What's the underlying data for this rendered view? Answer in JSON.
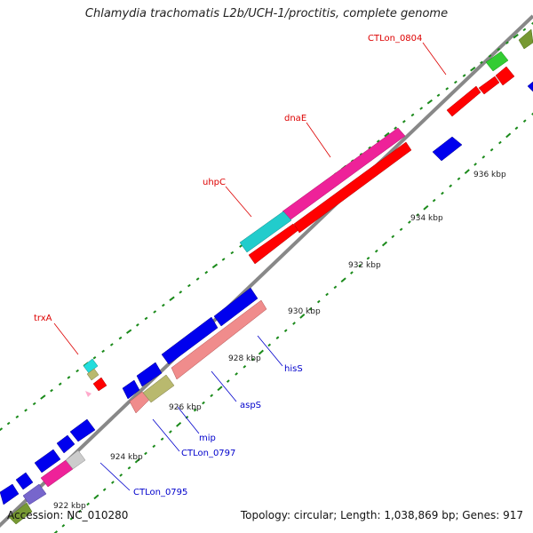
{
  "title": "Chlamydia trachomatis L2b/UCH-1/proctitis, complete genome",
  "footer": {
    "accession": "Accession: NC_010280",
    "summary": "Topology: circular; Length: 1,038,869 bp; Genes: 917"
  },
  "scale_labels": [
    "922 kbp",
    "924 kbp",
    "926 kbp",
    "928 kbp",
    "930 kbp",
    "932 kbp",
    "934 kbp",
    "936 kbp"
  ],
  "gene_labels": [
    {
      "text": "CTLon_0804",
      "color": "#dd0000"
    },
    {
      "text": "dnaE",
      "color": "#dd0000"
    },
    {
      "text": "uhpC",
      "color": "#dd0000"
    },
    {
      "text": "trxA",
      "color": "#dd0000"
    },
    {
      "text": "hisS",
      "color": "#0000cc"
    },
    {
      "text": "aspS",
      "color": "#0000cc"
    },
    {
      "text": "mip",
      "color": "#0000cc"
    },
    {
      "text": "CTLon_0797",
      "color": "#0000cc"
    },
    {
      "text": "CTLon_0795",
      "color": "#0000cc"
    }
  ],
  "colors": {
    "forward_strand": "#ff0000",
    "reverse_strand": "#0000ee",
    "backbone": "#888888",
    "tick": "#1a8a1a"
  }
}
